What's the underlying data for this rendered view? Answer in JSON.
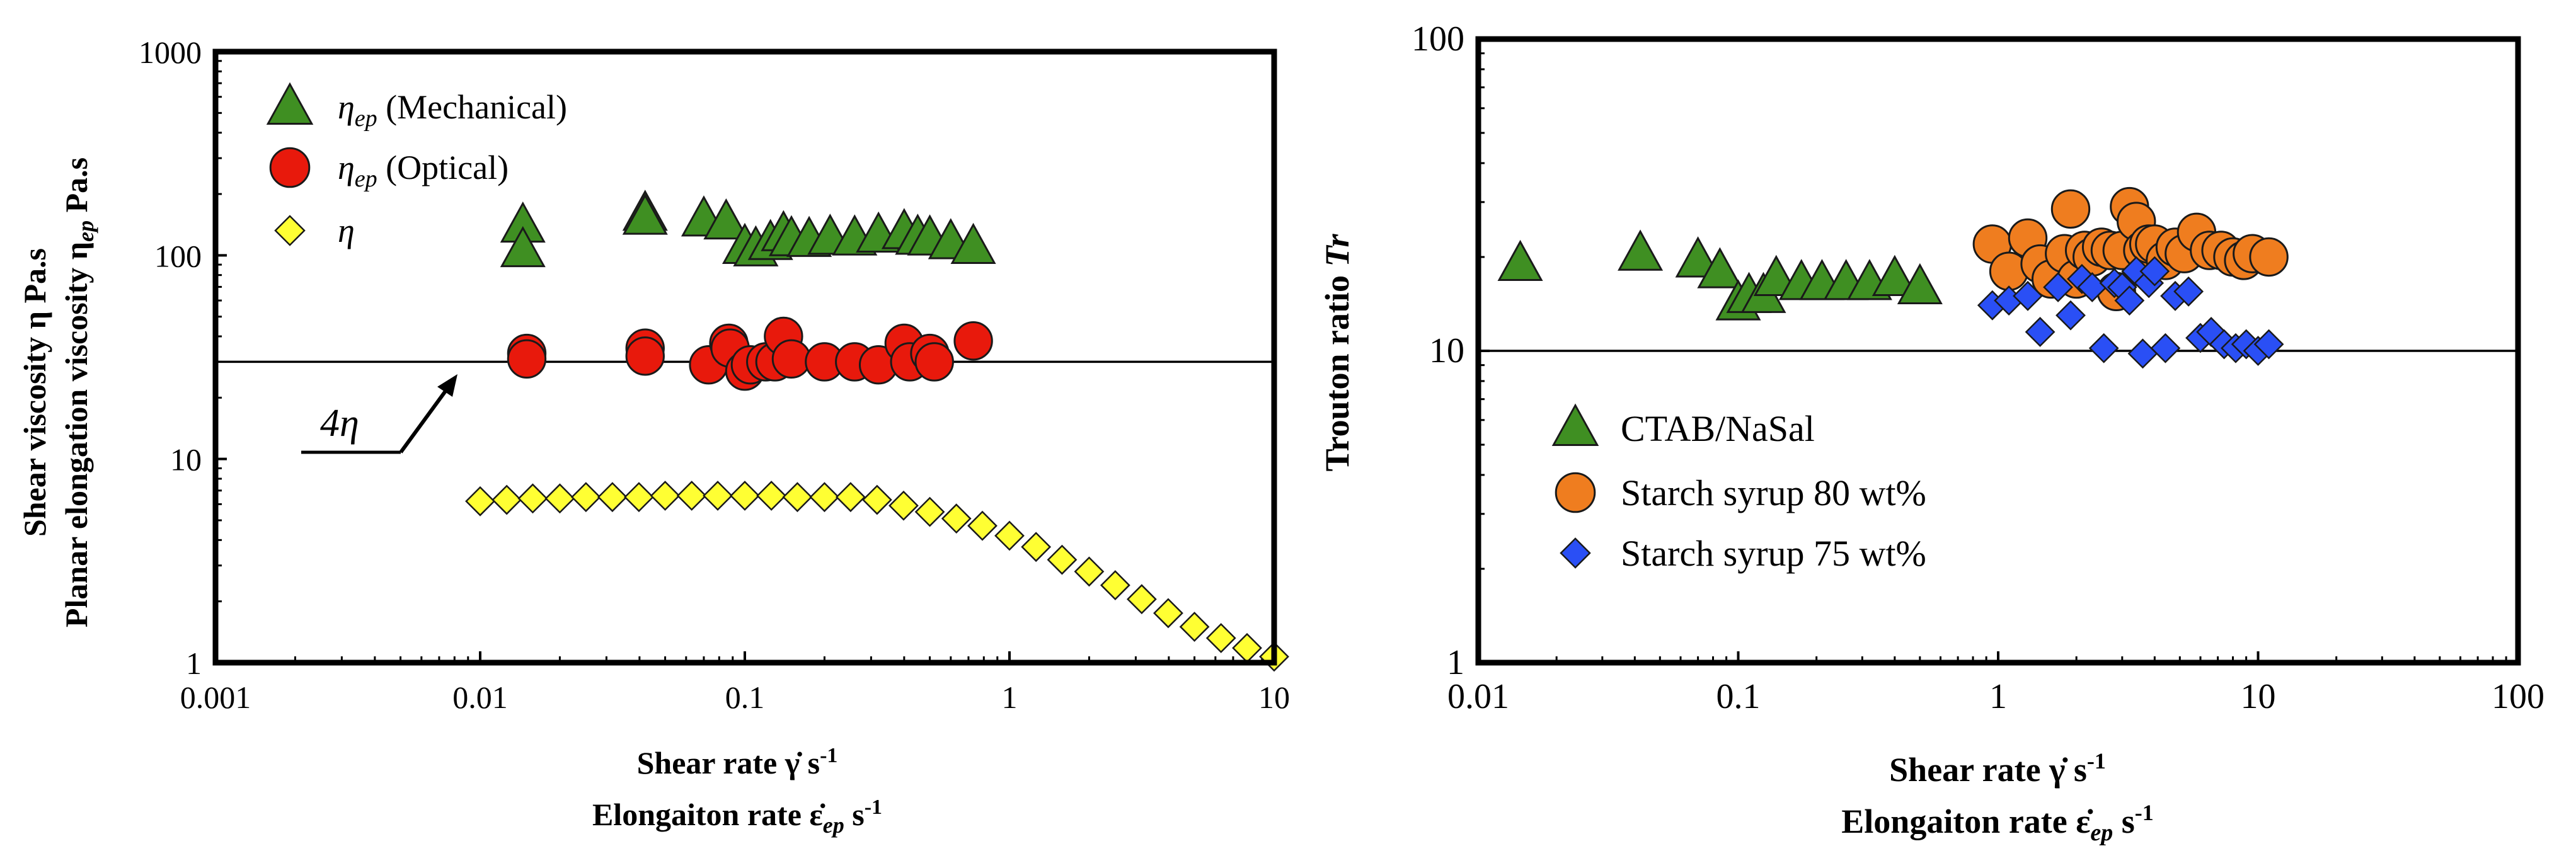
{
  "colors": {
    "mechanical": "#3f8f22",
    "optical": "#e8190c",
    "eta": "#ffff33",
    "ctab": "#3f8f22",
    "syrup80": "#ef7d1f",
    "syrup75": "#2a4ff5",
    "stroke": "#1a1a1a"
  },
  "left_panel": {
    "ylabel_line1": "Shear viscosity η Pa.s",
    "ylabel_line2_main": "Planar elongation viscosity η",
    "ylabel_line2_sub": "ep",
    "ylabel_line2_unit": " Pa.s",
    "xlabel_line1_main": "Shear rate  γ̇ s",
    "xlabel_line1_sup": "-1",
    "xlabel_line2_main": "Elongaiton rate  ε̇",
    "xlabel_line2_sub": "ep",
    "xlabel_line2_unit": " s",
    "xlabel_line2_sup": "-1",
    "annotation_main": "4η"
  },
  "right_panel": {
    "ylabel_main": "Trouton ratio  ",
    "ylabel_italic": "Tr",
    "xlabel_line1_main": "Shear rate  γ̇ s",
    "xlabel_line1_sup": "-1",
    "xlabel_line2_main": "Elongaiton rate  ε̇",
    "xlabel_line2_sub": "ep",
    "xlabel_line2_unit": " s",
    "xlabel_line2_sup": "-1"
  },
  "chart_data": [
    {
      "type": "scatter",
      "xscale": "log",
      "yscale": "log",
      "xlim": [
        0.001,
        10
      ],
      "ylim": [
        1,
        1000
      ],
      "x_tick_labels": [
        "0.001",
        "0.01",
        "0.1",
        "1",
        "10"
      ],
      "y_tick_labels": [
        "1",
        "10",
        "100",
        "1000"
      ],
      "legend_position": "top-left",
      "reference_line_y": 30,
      "series": [
        {
          "name_main": "η",
          "name_sub": "ep",
          "name_rest": " (Mechanical)",
          "marker": "triangle",
          "color_key": "mechanical",
          "x": [
            0.0145,
            0.0145,
            0.042,
            0.042,
            0.07,
            0.085,
            0.1,
            0.11,
            0.125,
            0.14,
            0.15,
            0.175,
            0.21,
            0.26,
            0.32,
            0.4,
            0.45,
            0.5,
            0.6,
            0.73
          ],
          "y": [
            140,
            106,
            160,
            153,
            150,
            145,
            110,
            107,
            115,
            127,
            120,
            119,
            122,
            121,
            125,
            130,
            122,
            121,
            116,
            110
          ]
        },
        {
          "name_main": "η",
          "name_sub": "ep",
          "name_rest": " (Optical)",
          "marker": "circle",
          "color_key": "optical",
          "x": [
            0.015,
            0.015,
            0.042,
            0.042,
            0.073,
            0.087,
            0.088,
            0.1,
            0.105,
            0.12,
            0.13,
            0.14,
            0.15,
            0.2,
            0.26,
            0.32,
            0.4,
            0.42,
            0.5,
            0.52,
            0.73
          ],
          "y": [
            33,
            31,
            35,
            32,
            29,
            37,
            35,
            27,
            29,
            30,
            30,
            40,
            31,
            30,
            30,
            29,
            37,
            30,
            33,
            30,
            38
          ]
        },
        {
          "name_main": "η",
          "name_sub": "",
          "name_rest": "",
          "marker": "diamond",
          "color_key": "eta",
          "x": [
            0.01,
            0.0126,
            0.0158,
            0.02,
            0.0251,
            0.0316,
            0.0398,
            0.05,
            0.063,
            0.079,
            0.1,
            0.126,
            0.158,
            0.2,
            0.251,
            0.316,
            0.398,
            0.5,
            0.63,
            0.79,
            1.0,
            1.26,
            1.58,
            2.0,
            2.51,
            3.16,
            3.98,
            5.0,
            6.3,
            7.9,
            10.0
          ],
          "y": [
            6.2,
            6.3,
            6.4,
            6.4,
            6.5,
            6.5,
            6.5,
            6.6,
            6.6,
            6.6,
            6.6,
            6.6,
            6.5,
            6.5,
            6.5,
            6.3,
            5.9,
            5.5,
            5.1,
            4.7,
            4.2,
            3.7,
            3.2,
            2.8,
            2.4,
            2.05,
            1.75,
            1.5,
            1.32,
            1.18,
            1.07
          ]
        }
      ]
    },
    {
      "type": "scatter",
      "xscale": "log",
      "yscale": "log",
      "xlim": [
        0.01,
        100
      ],
      "ylim": [
        1,
        100
      ],
      "x_tick_labels": [
        "0.01",
        "0.1",
        "1",
        "10",
        "100"
      ],
      "y_tick_labels": [
        "1",
        "10",
        "100"
      ],
      "legend_position": "bottom-left",
      "reference_line_y": 10,
      "series": [
        {
          "name": "CTAB/NaSal",
          "marker": "triangle",
          "color_key": "ctab",
          "x": [
            0.0145,
            0.042,
            0.07,
            0.085,
            0.1,
            0.11,
            0.125,
            0.14,
            0.175,
            0.21,
            0.26,
            0.32,
            0.4,
            0.5
          ],
          "y": [
            19,
            20.5,
            19.5,
            18,
            14.2,
            15,
            15,
            17,
            16.5,
            16.5,
            16.5,
            16.5,
            17,
            16
          ]
        },
        {
          "name": "Starch syrup 80 wt%",
          "marker": "circle",
          "color_key": "syrup80",
          "x": [
            0.95,
            1.1,
            1.3,
            1.45,
            1.6,
            1.8,
            1.9,
            2.0,
            2.15,
            2.3,
            2.5,
            2.7,
            2.85,
            3.0,
            3.2,
            3.4,
            3.6,
            3.8,
            4.0,
            4.4,
            4.8,
            5.2,
            5.8,
            6.5,
            7.2,
            8.0,
            8.8,
            9.5,
            11.0
          ],
          "y": [
            22,
            18,
            23,
            19,
            17,
            20.5,
            28.5,
            17,
            21,
            20,
            21.5,
            21,
            15.5,
            21,
            29,
            26,
            21,
            22,
            22,
            19.5,
            21.5,
            20.5,
            24,
            21,
            21,
            20,
            19.5,
            20.5,
            20
          ]
        },
        {
          "name": "Starch syrup 75 wt%",
          "marker": "diamond",
          "color_key": "syrup75",
          "x": [
            0.95,
            1.1,
            1.3,
            1.45,
            1.7,
            1.9,
            2.1,
            2.3,
            2.55,
            2.8,
            3.0,
            3.2,
            3.4,
            3.6,
            3.8,
            4.0,
            4.4,
            4.8,
            5.4,
            6.0,
            6.6,
            7.4,
            8.2,
            9.0,
            10.0,
            11.0
          ],
          "y": [
            14,
            14.5,
            15,
            11.5,
            16,
            13,
            17,
            16,
            10.2,
            16.5,
            16,
            14.5,
            18,
            9.8,
            16.5,
            18,
            10.2,
            15,
            15.5,
            11,
            11.5,
            10.5,
            10.2,
            10.5,
            10,
            10.5
          ]
        }
      ]
    }
  ]
}
